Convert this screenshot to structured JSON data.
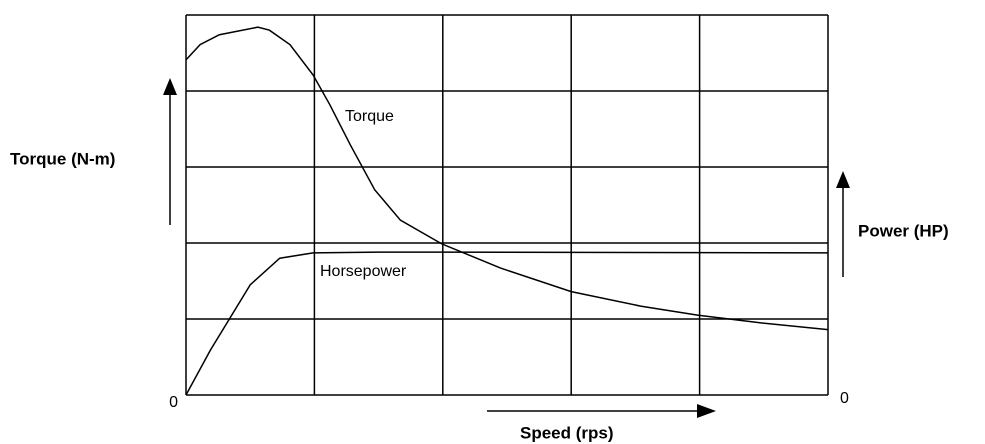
{
  "chart_data": {
    "type": "line",
    "x_label": "Speed (rps)",
    "y_label": "Torque (N-m)",
    "y2_label": "Power (HP)",
    "xlim": [
      0,
      5
    ],
    "ylim": [
      0,
      5
    ],
    "y2lim": [
      0,
      5
    ],
    "yticks": [
      0
    ],
    "y2ticks": [
      0
    ],
    "xgrid": [
      0,
      1,
      2,
      3,
      4,
      5
    ],
    "ygrid": [
      0,
      1,
      2,
      3,
      4,
      5
    ],
    "series": [
      {
        "name": "Torque",
        "color": "#000000",
        "x": [
          0,
          0.11,
          0.26,
          0.56,
          0.65,
          0.81,
          0.99,
          1.12,
          1.28,
          1.47,
          1.67,
          1.99,
          2.45,
          3.0,
          3.54,
          3.99,
          4.47,
          5.0
        ],
        "values": [
          4.41,
          4.61,
          4.74,
          4.84,
          4.8,
          4.61,
          4.21,
          3.82,
          3.29,
          2.7,
          2.3,
          1.99,
          1.67,
          1.36,
          1.17,
          1.05,
          0.95,
          0.86
        ]
      },
      {
        "name": "Horsepower",
        "color": "#000000",
        "axis": "y2",
        "x": [
          0,
          0.19,
          0.5,
          0.73,
          0.99,
          1.5,
          2.0,
          5.0
        ],
        "values": [
          0,
          0.59,
          1.45,
          1.8,
          1.87,
          1.88,
          1.88,
          1.87
        ]
      }
    ]
  }
}
